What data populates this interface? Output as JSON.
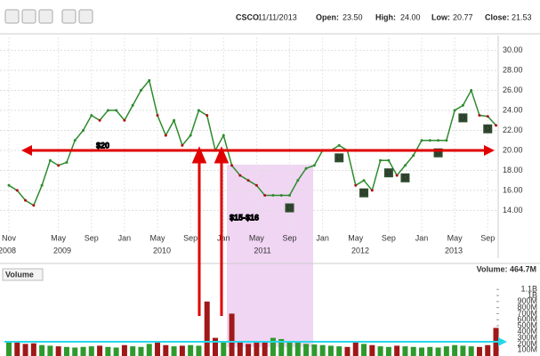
{
  "header": {
    "ticker": "CSCO",
    "date": "11/11/2013",
    "open_label": "Open:",
    "open": "23.50",
    "high_label": "High:",
    "high": "24.00",
    "low_label": "Low:",
    "low": "20.77",
    "close_label": "Close:",
    "close": "21.53"
  },
  "chart_data": [
    {
      "type": "line",
      "name": "price",
      "categories": [
        "Nov",
        null,
        null,
        null,
        null,
        null,
        "May",
        null,
        null,
        null,
        "Sep",
        null,
        null,
        null,
        "Jan",
        null,
        null,
        null,
        "May",
        null,
        null,
        null,
        "Sep",
        null,
        null,
        null,
        "Jan",
        null,
        null,
        null,
        "May",
        null,
        null,
        null,
        "Sep",
        null,
        null,
        null,
        "Jan",
        null,
        null,
        null,
        "May",
        null,
        null,
        null,
        "Sep",
        null,
        null,
        null,
        "Jan",
        null,
        null,
        null,
        "May",
        null,
        null,
        null,
        "Sep",
        null
      ],
      "years": [
        "2008",
        "2009",
        "2010",
        "2011",
        "2012",
        "2013"
      ],
      "values": [
        16.5,
        16,
        15,
        14.5,
        16.5,
        19,
        18.5,
        18.8,
        21,
        22,
        23.5,
        23,
        24,
        24,
        23,
        24.5,
        26,
        27,
        23.5,
        21.5,
        23,
        20.5,
        21.5,
        24,
        23.5,
        20,
        21.5,
        18.5,
        17.5,
        17,
        16.5,
        15.5,
        15.5,
        15.5,
        15.5,
        17,
        18.2,
        18.5,
        20,
        20,
        20.5,
        20,
        16.5,
        17,
        16,
        19,
        19,
        17.5,
        18.5,
        19.5,
        21,
        21,
        21,
        21,
        24,
        24.5,
        26,
        23.5,
        23.4,
        22.5
      ],
      "color": "#2e8b2e",
      "ylim": [
        11.9,
        31.3
      ],
      "yticks": [
        {
          "value": 14,
          "label": "14.00"
        },
        {
          "value": 16,
          "label": "16.00"
        },
        {
          "value": 18,
          "label": "18.00"
        },
        {
          "value": 20,
          "label": "20.00"
        },
        {
          "value": 22,
          "label": "22.00"
        },
        {
          "value": 24,
          "label": "24.00"
        },
        {
          "value": 26,
          "label": "26.00"
        },
        {
          "value": 28,
          "label": "28.00"
        },
        {
          "value": 30,
          "label": "30.00"
        }
      ],
      "grid": true,
      "annotations": [
        {
          "label": "$20",
          "value": 20
        },
        {
          "label": "$15-$16",
          "range": [
            15,
            16
          ]
        }
      ],
      "dividends": [
        {
          "x": 40,
          "label": "D"
        },
        {
          "x": 46,
          "label": "D"
        },
        {
          "x": 48,
          "label": "D"
        },
        {
          "x": 52,
          "label": "D"
        },
        {
          "x": 55,
          "label": "D"
        },
        {
          "x": 58,
          "label": "D"
        },
        {
          "x": 34,
          "label": "D"
        },
        {
          "x": 43,
          "label": "D"
        }
      ]
    },
    {
      "type": "bar",
      "name": "volume",
      "title": "Volume",
      "current_label": "Volume: 464.7M",
      "values": [
        250,
        220,
        200,
        210,
        180,
        170,
        160,
        150,
        140,
        150,
        160,
        170,
        150,
        140,
        180,
        160,
        150,
        200,
        220,
        180,
        160,
        170,
        180,
        170,
        900,
        300,
        250,
        700,
        250,
        200,
        220,
        240,
        300,
        280,
        250,
        220,
        200,
        190,
        180,
        170,
        160,
        150,
        250,
        200,
        180,
        160,
        150,
        170,
        160,
        150,
        140,
        150,
        140,
        160,
        180,
        170,
        160,
        150,
        180,
        464.7
      ],
      "ylim": [
        0,
        1250
      ],
      "yticks": [
        {
          "value": 100,
          "label": "100M"
        },
        {
          "value": 200,
          "label": "200M"
        },
        {
          "value": 300,
          "label": "300M"
        },
        {
          "value": 400,
          "label": "400M"
        },
        {
          "value": 500,
          "label": "500M"
        },
        {
          "value": 600,
          "label": "600M"
        },
        {
          "value": 700,
          "label": "700M"
        },
        {
          "value": 800,
          "label": "800M"
        },
        {
          "value": 900,
          "label": "900M"
        },
        {
          "value": 1000,
          "label": "1B"
        },
        {
          "value": 1100,
          "label": "1.1B"
        }
      ]
    }
  ]
}
